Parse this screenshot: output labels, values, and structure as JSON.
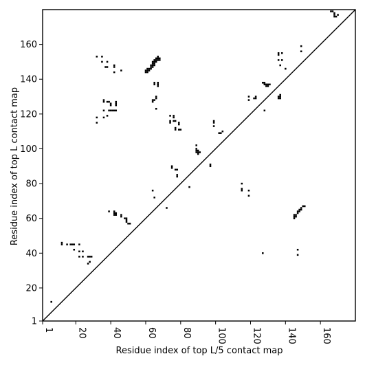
{
  "chart_data": {
    "type": "scatter",
    "title": "",
    "xlabel": "Residue index of top L/5 contact map",
    "ylabel": "Residue index of top L contact map",
    "xlim": [
      1,
      180
    ],
    "ylim": [
      1,
      180
    ],
    "x_ticks": [
      1,
      20,
      40,
      60,
      80,
      100,
      120,
      140,
      160
    ],
    "y_ticks": [
      1,
      20,
      40,
      60,
      80,
      100,
      120,
      140,
      160
    ],
    "x_tick_labels": [
      "1",
      "20",
      "40",
      "60",
      "80",
      "100",
      "120",
      "140",
      "160"
    ],
    "y_tick_labels": [
      "1",
      "20",
      "40",
      "60",
      "80",
      "100",
      "120",
      "140",
      "160"
    ],
    "x_tick_rotation_deg": 90,
    "grid": false,
    "legend": "none",
    "diagonal_line": true,
    "marker_color": "#000000",
    "series": [
      {
        "points": [
          [
            6,
            12
          ],
          [
            12,
            45
          ],
          [
            12,
            46
          ],
          [
            15,
            45
          ],
          [
            17,
            45
          ],
          [
            18,
            45
          ],
          [
            19,
            45
          ],
          [
            19,
            42
          ],
          [
            22,
            45
          ],
          [
            22,
            41
          ],
          [
            22,
            38
          ],
          [
            24,
            41
          ],
          [
            24,
            38
          ],
          [
            27,
            38
          ],
          [
            28,
            38
          ],
          [
            29,
            38
          ],
          [
            27,
            34
          ],
          [
            28,
            35
          ],
          [
            32,
            153
          ],
          [
            35,
            153
          ],
          [
            35,
            150
          ],
          [
            37,
            147
          ],
          [
            38,
            147
          ],
          [
            38,
            150
          ],
          [
            42,
            148
          ],
          [
            42,
            147
          ],
          [
            42,
            144
          ],
          [
            46,
            145
          ],
          [
            32,
            118
          ],
          [
            32,
            115
          ],
          [
            36,
            118
          ],
          [
            36,
            122
          ],
          [
            36,
            127
          ],
          [
            36,
            128
          ],
          [
            38,
            127
          ],
          [
            39,
            127
          ],
          [
            39,
            122
          ],
          [
            40,
            122
          ],
          [
            40,
            125
          ],
          [
            40,
            126
          ],
          [
            41,
            122
          ],
          [
            42,
            122
          ],
          [
            43,
            122
          ],
          [
            43,
            125
          ],
          [
            43,
            126
          ],
          [
            43,
            127
          ],
          [
            38,
            119
          ],
          [
            39,
            64
          ],
          [
            42,
            64
          ],
          [
            42,
            63
          ],
          [
            43,
            63
          ],
          [
            42,
            62
          ],
          [
            43,
            62
          ],
          [
            46,
            62
          ],
          [
            46,
            61
          ],
          [
            48,
            60
          ],
          [
            49,
            60
          ],
          [
            49,
            59
          ],
          [
            49,
            58
          ],
          [
            50,
            57
          ],
          [
            51,
            57
          ],
          [
            60,
            144
          ],
          [
            60,
            145
          ],
          [
            61,
            144
          ],
          [
            61,
            145
          ],
          [
            61,
            146
          ],
          [
            62,
            145
          ],
          [
            62,
            146
          ],
          [
            63,
            146
          ],
          [
            63,
            147
          ],
          [
            63,
            148
          ],
          [
            64,
            147
          ],
          [
            64,
            148
          ],
          [
            64,
            149
          ],
          [
            64,
            150
          ],
          [
            65,
            148
          ],
          [
            65,
            149
          ],
          [
            65,
            150
          ],
          [
            65,
            151
          ],
          [
            66,
            150
          ],
          [
            66,
            151
          ],
          [
            66,
            152
          ],
          [
            67,
            151
          ],
          [
            67,
            152
          ],
          [
            67,
            153
          ],
          [
            68,
            152
          ],
          [
            68,
            151
          ],
          [
            65,
            137
          ],
          [
            65,
            138
          ],
          [
            67,
            137
          ],
          [
            67,
            138
          ],
          [
            67,
            136
          ],
          [
            64,
            127
          ],
          [
            64,
            128
          ],
          [
            65,
            128
          ],
          [
            66,
            129
          ],
          [
            66,
            130
          ],
          [
            66,
            123
          ],
          [
            64,
            76
          ],
          [
            65,
            72
          ],
          [
            72,
            66
          ],
          [
            74,
            119
          ],
          [
            74,
            116
          ],
          [
            74,
            115
          ],
          [
            76,
            119
          ],
          [
            76,
            118
          ],
          [
            76,
            116
          ],
          [
            77,
            116
          ],
          [
            77,
            112
          ],
          [
            77,
            111
          ],
          [
            79,
            115
          ],
          [
            79,
            114
          ],
          [
            79,
            111
          ],
          [
            80,
            111
          ],
          [
            75,
            90
          ],
          [
            75,
            89
          ],
          [
            77,
            88
          ],
          [
            78,
            88
          ],
          [
            78,
            85
          ],
          [
            78,
            84
          ],
          [
            85,
            78
          ],
          [
            89,
            102
          ],
          [
            89,
            100
          ],
          [
            89,
            99
          ],
          [
            89,
            98
          ],
          [
            90,
            99
          ],
          [
            90,
            98
          ],
          [
            91,
            98
          ],
          [
            90,
            97
          ],
          [
            97,
            91
          ],
          [
            97,
            90
          ],
          [
            99,
            116
          ],
          [
            99,
            115
          ],
          [
            99,
            113
          ],
          [
            102,
            109
          ],
          [
            103,
            109
          ],
          [
            104,
            110
          ],
          [
            115,
            80
          ],
          [
            115,
            77
          ],
          [
            115,
            76
          ],
          [
            119,
            76
          ],
          [
            119,
            73
          ],
          [
            119,
            130
          ],
          [
            119,
            128
          ],
          [
            122,
            129
          ],
          [
            123,
            130
          ],
          [
            123,
            129
          ],
          [
            127,
            40
          ],
          [
            127,
            138
          ],
          [
            128,
            138
          ],
          [
            128,
            137
          ],
          [
            129,
            137
          ],
          [
            129,
            136
          ],
          [
            130,
            137
          ],
          [
            130,
            136
          ],
          [
            131,
            137
          ],
          [
            128,
            122
          ],
          [
            136,
            155
          ],
          [
            136,
            154
          ],
          [
            136,
            151
          ],
          [
            136,
            130
          ],
          [
            136,
            129
          ],
          [
            137,
            130
          ],
          [
            137,
            129
          ],
          [
            137,
            131
          ],
          [
            138,
            155
          ],
          [
            138,
            151
          ],
          [
            137,
            148
          ],
          [
            140,
            146
          ],
          [
            145,
            62
          ],
          [
            145,
            61
          ],
          [
            145,
            60
          ],
          [
            146,
            62
          ],
          [
            146,
            61
          ],
          [
            147,
            63
          ],
          [
            147,
            64
          ],
          [
            148,
            64
          ],
          [
            148,
            65
          ],
          [
            149,
            65
          ],
          [
            149,
            66
          ],
          [
            150,
            67
          ],
          [
            151,
            67
          ],
          [
            147,
            42
          ],
          [
            147,
            39
          ],
          [
            149,
            159
          ],
          [
            149,
            156
          ],
          [
            166,
            179
          ],
          [
            167,
            179
          ],
          [
            168,
            178
          ],
          [
            168,
            177
          ],
          [
            168,
            176
          ],
          [
            169,
            176
          ],
          [
            170,
            177
          ]
        ]
      }
    ]
  }
}
